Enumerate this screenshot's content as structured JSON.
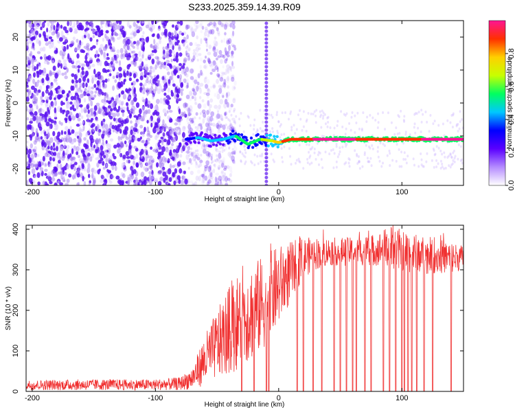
{
  "title": "S233.2025.359.14.39.R09",
  "colors": {
    "snr_line": "#f03030",
    "scatter_noise": "#9b6ff0",
    "scatter_strong": "#5a10f0",
    "axis": "#000000"
  },
  "chart_data": [
    {
      "type": "heatmap",
      "name": "spectrogram",
      "xlabel": "Height of straight line (km)",
      "ylabel": "Frequency (Hz)",
      "xlim": [
        -205,
        150
      ],
      "ylim": [
        -25,
        25
      ],
      "x_ticks": [
        -200,
        -100,
        0,
        100
      ],
      "x_tick_labels": [
        "-200",
        "-100",
        "0",
        "100"
      ],
      "y_ticks": [
        -20,
        -10,
        0,
        10,
        20
      ],
      "y_tick_labels": [
        "-20",
        "-10",
        "0",
        "10",
        "20"
      ],
      "colorbar": {
        "label": "Normalized spectral amplitude",
        "range": [
          0,
          1
        ],
        "ticks": [
          0.0,
          0.2,
          0.4,
          0.6,
          0.8
        ],
        "tick_labels": [
          "0.0",
          "0.2",
          "0.4",
          "0.6",
          "0.8"
        ],
        "stops": [
          "#ffffff",
          "#b58cff",
          "#5a00ff",
          "#0000ff",
          "#00c8ff",
          "#00ff60",
          "#c8ff00",
          "#ffd000",
          "#ff3000",
          "#ff1493"
        ]
      },
      "noise_region": {
        "x_range": [
          -205,
          -75
        ],
        "y_range": [
          -25,
          25
        ],
        "description_value": "broadband noise"
      },
      "vertical_stripe_x": -10,
      "signal_track": [
        {
          "x": -75,
          "y": -11,
          "amp": 0.35
        },
        {
          "x": -65,
          "y": -10.5,
          "amp": 0.4
        },
        {
          "x": -55,
          "y": -11.5,
          "amp": 0.4
        },
        {
          "x": -45,
          "y": -11,
          "amp": 0.45
        },
        {
          "x": -35,
          "y": -10,
          "amp": 0.5
        },
        {
          "x": -25,
          "y": -12.5,
          "amp": 0.55
        },
        {
          "x": -15,
          "y": -11,
          "amp": 0.6
        },
        {
          "x": -5,
          "y": -11.5,
          "amp": 0.7
        },
        {
          "x": 0,
          "y": -12,
          "amp": 0.8
        },
        {
          "x": 10,
          "y": -11,
          "amp": 0.9
        },
        {
          "x": 30,
          "y": -11,
          "amp": 0.95
        },
        {
          "x": 60,
          "y": -11,
          "amp": 0.95
        },
        {
          "x": 90,
          "y": -11,
          "amp": 0.9
        },
        {
          "x": 120,
          "y": -11,
          "amp": 0.95
        },
        {
          "x": 150,
          "y": -11,
          "amp": 0.95
        }
      ]
    },
    {
      "type": "line",
      "name": "snr",
      "xlabel": "Height of straight line (km)",
      "ylabel": "SNR (10 * v/v)",
      "xlim": [
        -205,
        150
      ],
      "ylim": [
        0,
        410
      ],
      "x_ticks": [
        -200,
        -100,
        0,
        100
      ],
      "x_tick_labels": [
        "-200",
        "-100",
        "0",
        "100"
      ],
      "y_ticks": [
        0,
        100,
        200,
        300,
        400
      ],
      "y_tick_labels": [
        "0",
        "100",
        "200",
        "300",
        "400"
      ],
      "series": [
        {
          "name": "SNR",
          "envelope_x": [
            -205,
            -150,
            -100,
            -80,
            -70,
            -60,
            -50,
            -40,
            -30,
            -20,
            -10,
            0,
            10,
            20,
            30,
            40,
            60,
            80,
            90,
            100,
            120,
            140,
            150
          ],
          "envelope_low": [
            3,
            3,
            3,
            3,
            5,
            15,
            30,
            40,
            60,
            80,
            110,
            160,
            220,
            280,
            300,
            310,
            310,
            310,
            300,
            290,
            290,
            290,
            300
          ],
          "envelope_high": [
            28,
            30,
            30,
            35,
            60,
            140,
            200,
            260,
            300,
            320,
            340,
            360,
            370,
            380,
            380,
            380,
            380,
            390,
            410,
            400,
            380,
            370,
            360
          ],
          "dropouts_to_zero_x": [
            -30,
            -20,
            -10,
            -8,
            15,
            20,
            28,
            35,
            45,
            50,
            55,
            60,
            63,
            70,
            75,
            85,
            90,
            95,
            100,
            102,
            105,
            108,
            112,
            118,
            125,
            140
          ]
        }
      ]
    }
  ]
}
